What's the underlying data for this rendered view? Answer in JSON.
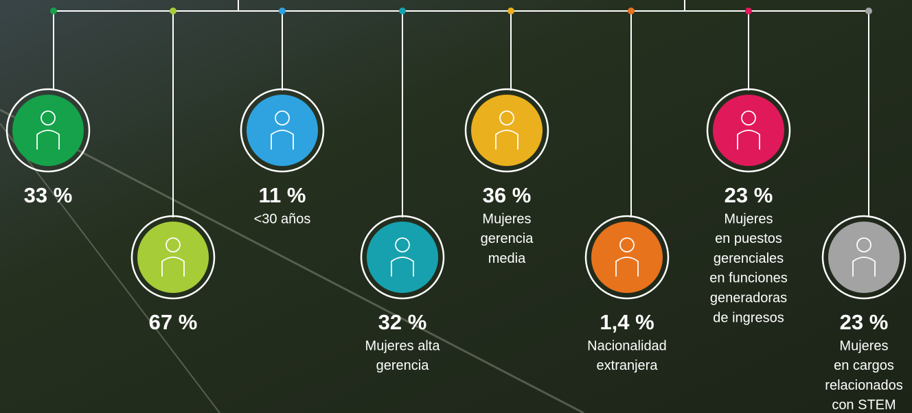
{
  "items": [
    {
      "value": "33 %",
      "lines": [],
      "color": "#15a24a",
      "dot": "#15a24a"
    },
    {
      "value": "67 %",
      "lines": [],
      "color": "#a6cc38",
      "dot": "#a6cc38"
    },
    {
      "value": "11 %",
      "lines": [
        "<30 años"
      ],
      "color": "#2ea3df",
      "dot": "#2ea3df"
    },
    {
      "value": "32 %",
      "lines": [
        "Mujeres alta",
        "gerencia"
      ],
      "color": "#17a1ae",
      "dot": "#17a1ae"
    },
    {
      "value": "36 %",
      "lines": [
        "Mujeres",
        "gerencia",
        "media"
      ],
      "color": "#eab01e",
      "dot": "#eab01e"
    },
    {
      "value": "1,4 %",
      "lines": [
        "Nacionalidad",
        "extranjera"
      ],
      "color": "#e8731d",
      "dot": "#e8731d"
    },
    {
      "value": "23 %",
      "lines": [
        "Mujeres",
        "en puestos",
        "gerenciales",
        "en funciones",
        "generadoras",
        "de ingresos"
      ],
      "color": "#e0195a",
      "dot": "#e0195a"
    },
    {
      "value": "23 %",
      "lines": [
        "Mujeres",
        "en cargos",
        "relacionados",
        "con STEM"
      ],
      "color": "#a3a3a3",
      "dot": "#a3a3a3"
    }
  ]
}
